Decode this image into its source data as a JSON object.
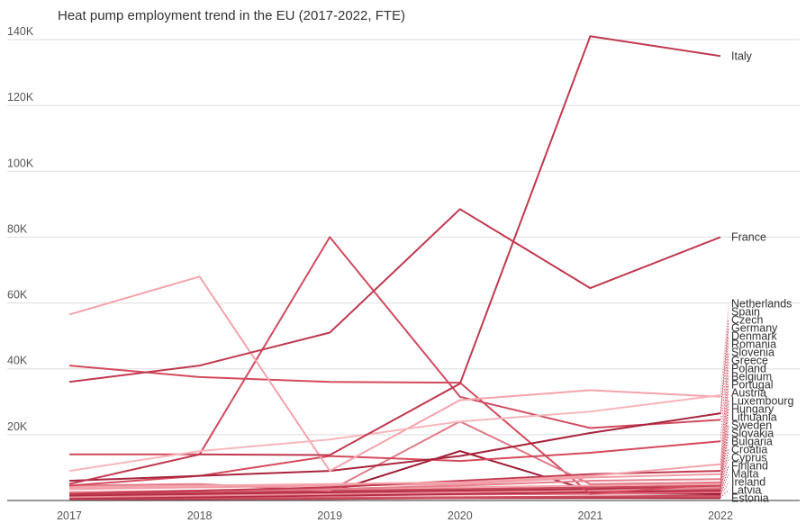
{
  "chart_data": {
    "type": "line",
    "title": "Heat pump employment trend in the EU (2017-2022, FTE)",
    "xlabel": "",
    "ylabel": "",
    "x": [
      2017,
      2018,
      2019,
      2020,
      2021,
      2022
    ],
    "x_tick_labels": [
      "2017",
      "2018",
      "2019",
      "2020",
      "2021",
      "2022"
    ],
    "ylim": [
      0,
      140000
    ],
    "y_ticks": [
      0,
      20000,
      40000,
      60000,
      80000,
      100000,
      120000,
      140000
    ],
    "y_tick_labels": [
      "",
      "20K",
      "40K",
      "60K",
      "80K",
      "100K",
      "120K",
      "140K"
    ],
    "grid": true,
    "legend": "labels at line ends",
    "series": [
      {
        "name": "Italy",
        "color": "#c0394f",
        "values": [
          5000,
          14000,
          13800,
          35500,
          141000,
          135000
        ]
      },
      {
        "name": "France",
        "color": "#c0394f",
        "values": [
          36000,
          41000,
          51000,
          88500,
          64500,
          80000
        ]
      },
      {
        "name": "Spain",
        "color": "#f4a3ab",
        "values": [
          56500,
          68000,
          9000,
          30500,
          33500,
          31500
        ]
      },
      {
        "name": "Portugal",
        "color": "#d44a5c",
        "values": [
          41000,
          37500,
          36000,
          35800,
          2000,
          5000
        ]
      },
      {
        "name": "Germany",
        "color": "#cf4b5f",
        "values": [
          14000,
          14000,
          80000,
          31500,
          22000,
          24500
        ]
      },
      {
        "name": "Netherlands",
        "color": "#f7b6bc",
        "values": [
          9000,
          15000,
          18500,
          24000,
          27000,
          32000
        ]
      },
      {
        "name": "Belgium",
        "color": "#e07b88",
        "values": [
          4500,
          5000,
          3000,
          24000,
          5000,
          5500
        ]
      },
      {
        "name": "Romania",
        "color": "#f4a3ab",
        "values": [
          4000,
          4500,
          5000,
          5500,
          7500,
          11000
        ]
      },
      {
        "name": "Czech",
        "color": "#a8243c",
        "values": [
          6000,
          7500,
          9000,
          13500,
          20500,
          26500
        ]
      },
      {
        "name": "Slovenia",
        "color": "#c0394f",
        "values": [
          2000,
          3000,
          4000,
          6000,
          8000,
          9000
        ]
      },
      {
        "name": "Sweden",
        "color": "#9e1b32",
        "values": [
          1500,
          2000,
          2500,
          15000,
          3000,
          3500
        ]
      },
      {
        "name": "Greece",
        "color": "#f29ba6",
        "values": [
          3500,
          4000,
          4500,
          5000,
          7000,
          8000
        ]
      },
      {
        "name": "Denmark",
        "color": "#d44a5c",
        "values": [
          4500,
          7500,
          13500,
          12000,
          14500,
          18000
        ]
      },
      {
        "name": "Poland",
        "color": "#e57f8c",
        "values": [
          2500,
          3000,
          3500,
          4500,
          6000,
          6500
        ]
      },
      {
        "name": "Luxembourg",
        "color": "#b32d44",
        "values": [
          1500,
          2000,
          2500,
          3000,
          3500,
          4500
        ]
      },
      {
        "name": "Austria",
        "color": "#f4a3ab",
        "values": [
          2500,
          3000,
          3500,
          4000,
          4500,
          5000
        ]
      },
      {
        "name": "Hungary",
        "color": "#c74a5c",
        "values": [
          2000,
          2500,
          3000,
          3500,
          4000,
          4500
        ]
      },
      {
        "name": "Lithuania",
        "color": "#e88d98",
        "values": [
          1000,
          1500,
          2000,
          2500,
          3000,
          4000
        ]
      },
      {
        "name": "Slovakia",
        "color": "#d35e6d",
        "values": [
          1500,
          2000,
          2500,
          3000,
          3000,
          3500
        ]
      },
      {
        "name": "Bulgaria",
        "color": "#ec95a0",
        "values": [
          1000,
          1500,
          2000,
          2500,
          2500,
          3000
        ]
      },
      {
        "name": "Croatia",
        "color": "#b52b45",
        "values": [
          800,
          1000,
          1500,
          2000,
          2500,
          3000
        ]
      },
      {
        "name": "Cyprus",
        "color": "#e66c7e",
        "values": [
          1000,
          1200,
          1500,
          1800,
          2000,
          2500
        ]
      },
      {
        "name": "Finland",
        "color": "#8e1630",
        "values": [
          1200,
          1500,
          1800,
          2000,
          2200,
          2000
        ]
      },
      {
        "name": "Malta",
        "color": "#c94b5e",
        "values": [
          400,
          500,
          600,
          800,
          1200,
          1500
        ]
      },
      {
        "name": "Ireland",
        "color": "#d76474",
        "values": [
          600,
          700,
          900,
          1000,
          1200,
          1200
        ]
      },
      {
        "name": "Latvia",
        "color": "#a8243c",
        "values": [
          300,
          400,
          500,
          700,
          800,
          900
        ]
      },
      {
        "name": "Estonia",
        "color": "#9e1b32",
        "values": [
          500,
          600,
          700,
          800,
          800,
          700
        ]
      }
    ]
  }
}
